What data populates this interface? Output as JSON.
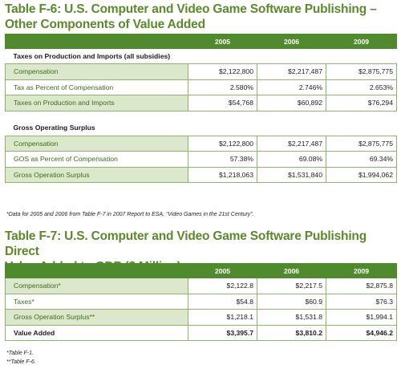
{
  "table6": {
    "title_line1": "Table F-6:  U.S. Computer and Video Game Software Publishing –",
    "title_line2": "Other Components of Value Added",
    "years": [
      "2005",
      "2006",
      "2009"
    ],
    "section1": {
      "heading": "Taxes on Production and Imports (all subsidies)",
      "rows": [
        {
          "label": "Compensation",
          "values": [
            "$2,122,800",
            "$2,217,487",
            "$2,875,775"
          ]
        },
        {
          "label": "Tax as Percent of Compensation",
          "values": [
            "2.580%",
            "2.746%",
            "2.653%"
          ]
        },
        {
          "label": "Taxes on Production and Imports",
          "values": [
            "$54,768",
            "$60,892",
            "$76,294"
          ]
        }
      ]
    },
    "section2": {
      "heading": "Gross Operating Surplus",
      "rows": [
        {
          "label": "Compensation",
          "values": [
            "$2,122,800",
            "$2,217,487",
            "$2,875,775"
          ]
        },
        {
          "label": "GOS as Percent of Compensation",
          "values": [
            "57.38%",
            "69.08%",
            "69.34%"
          ]
        },
        {
          "label": "Gross Operation Surplus",
          "values": [
            "$1,218,063",
            "$1,531,840",
            "$1,994,062"
          ]
        }
      ]
    },
    "note": "*Data for 2005 and 2006 from Table F-7 in 2007 Report to ESA, “Video Games in the 21st Century”."
  },
  "table7": {
    "title_line1": "Table F-7:  U.S. Computer and Video Game Software Publishing Direct",
    "title_line2": "Value Added to GDP ($ Million)",
    "years": [
      "2005",
      "2006",
      "2009"
    ],
    "rows": [
      {
        "label": "Compensation*",
        "values": [
          "$2,122.8",
          "$2,217.5",
          "$2,875.8"
        ]
      },
      {
        "label": "Taxes*",
        "values": [
          "$54.8",
          "$60.9",
          "$76.3"
        ]
      },
      {
        "label": "Gross Operation Surplus**",
        "values": [
          "$1,218.1",
          "$1,531.8",
          "$1,994.1"
        ]
      }
    ],
    "total": {
      "label": "Value Added",
      "values": [
        "$3,395.7",
        "$3,810.2",
        "$4,946.2"
      ]
    },
    "footnotes": [
      "*Table F-1.",
      "**Table F-6."
    ]
  }
}
